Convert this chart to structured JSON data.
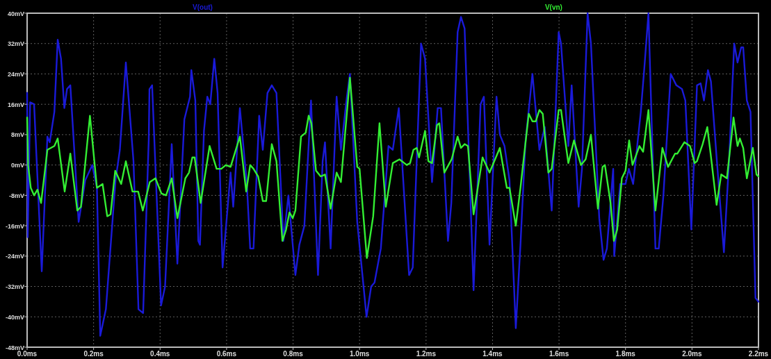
{
  "chart_data": {
    "type": "line",
    "legend": "top",
    "grid": true,
    "line_style": "solid",
    "marker": "none",
    "xlim": [
      0,
      2.2
    ],
    "ylim": [
      -48,
      40
    ],
    "xticks": [
      {
        "value": 0,
        "label": "0.0ms"
      },
      {
        "value": 0.2,
        "label": "0.2ms"
      },
      {
        "value": 0.4,
        "label": "0.4ms"
      },
      {
        "value": 0.6,
        "label": "0.6ms"
      },
      {
        "value": 0.8,
        "label": "0.8ms"
      },
      {
        "value": 1.0,
        "label": "1.0ms"
      },
      {
        "value": 1.2,
        "label": "1.2ms"
      },
      {
        "value": 1.4,
        "label": "1.4ms"
      },
      {
        "value": 1.6,
        "label": "1.6ms"
      },
      {
        "value": 1.8,
        "label": "1.8ms"
      },
      {
        "value": 2.0,
        "label": "2.0ms"
      },
      {
        "value": 2.2,
        "label": "2.2ms"
      }
    ],
    "yticks": [
      {
        "value": -48,
        "label": "-48mV"
      },
      {
        "value": -40,
        "label": "-40mV"
      },
      {
        "value": -32,
        "label": "-32mV"
      },
      {
        "value": -24,
        "label": "-24mV"
      },
      {
        "value": -16,
        "label": "-16mV"
      },
      {
        "value": -8,
        "label": "-8mV"
      },
      {
        "value": 0,
        "label": "0mV"
      },
      {
        "value": 8,
        "label": "8mV"
      },
      {
        "value": 16,
        "label": "16mV"
      },
      {
        "value": 24,
        "label": "24mV"
      },
      {
        "value": 32,
        "label": "32mV"
      },
      {
        "value": 40,
        "label": "40mV"
      }
    ],
    "series": [
      {
        "name": "V(out)",
        "color": "#1a1ad8",
        "x": [
          0,
          0.002,
          0.009,
          0.021,
          0.044,
          0.061,
          0.068,
          0.082,
          0.092,
          0.102,
          0.112,
          0.12,
          0.13,
          0.155,
          0.175,
          0.196,
          0.21,
          0.22,
          0.237,
          0.266,
          0.279,
          0.297,
          0.32,
          0.335,
          0.349,
          0.366,
          0.368,
          0.376,
          0.403,
          0.415,
          0.435,
          0.452,
          0.473,
          0.49,
          0.494,
          0.506,
          0.515,
          0.52,
          0.532,
          0.542,
          0.551,
          0.563,
          0.573,
          0.588,
          0.612,
          0.62,
          0.64,
          0.661,
          0.671,
          0.681,
          0.698,
          0.709,
          0.723,
          0.736,
          0.75,
          0.771,
          0.786,
          0.807,
          0.819,
          0.834,
          0.854,
          0.875,
          0.889,
          0.896,
          0.913,
          0.931,
          0.944,
          0.962,
          0.971,
          0.993,
          1.021,
          1.035,
          1.045,
          1.064,
          1.087,
          1.1,
          1.118,
          1.149,
          1.16,
          1.185,
          1.197,
          1.218,
          1.235,
          1.245,
          1.266,
          1.276,
          1.295,
          1.305,
          1.316,
          1.343,
          1.364,
          1.374,
          1.391,
          1.412,
          1.422,
          1.436,
          1.451,
          1.47,
          1.484,
          1.499,
          1.52,
          1.541,
          1.557,
          1.578,
          1.599,
          1.606,
          1.628,
          1.638,
          1.659,
          1.669,
          1.686,
          1.696,
          1.721,
          1.734,
          1.744,
          1.763,
          1.766,
          1.784,
          1.8,
          1.81,
          1.823,
          1.846,
          1.857,
          1.869,
          1.89,
          1.9,
          1.914,
          1.936,
          1.953,
          1.97,
          1.98,
          1.998,
          2.015,
          2.026,
          2.036,
          2.048,
          2.057,
          2.074,
          2.096,
          2.112,
          2.127,
          2.137,
          2.148,
          2.154,
          2.165,
          2.176,
          2.191,
          2.2
        ],
        "values": [
          19,
          -19,
          16.5,
          16,
          -28,
          7.5,
          6,
          14,
          33,
          28,
          15,
          20,
          21,
          -15,
          -4,
          0,
          -6,
          -45,
          -38,
          -4,
          4,
          27,
          1,
          -38,
          -39,
          7,
          20,
          21,
          -37,
          -32,
          5.5,
          -26,
          12,
          18,
          25,
          17,
          -20,
          -21,
          9,
          18,
          16,
          28,
          19,
          -27,
          -2,
          -11,
          15,
          -5,
          -22,
          -22,
          13,
          4,
          19,
          21,
          19,
          -20,
          -8,
          -29,
          -21,
          -16,
          17,
          -29,
          1,
          6,
          -22,
          18,
          4,
          18,
          24,
          -15,
          -40,
          -32,
          -31,
          -22,
          5,
          4,
          15,
          -29,
          -27,
          32,
          28,
          -4.5,
          15,
          15,
          -20,
          -10,
          35,
          39,
          36,
          -33,
          16,
          18,
          -21,
          18,
          8,
          5,
          -4,
          -43,
          -21,
          6,
          24,
          4,
          10,
          -12,
          35,
          32,
          5,
          21,
          -11,
          -1,
          40,
          32,
          -14,
          -25,
          -22,
          -1,
          -24,
          -5,
          -5,
          -1,
          -5,
          14,
          26,
          40,
          -22,
          -22,
          -8,
          24,
          21,
          20,
          17,
          -17,
          21,
          21.5,
          17,
          25,
          22,
          2,
          -23,
          2,
          32,
          27,
          31,
          31,
          17,
          14,
          -35,
          -36
        ]
      },
      {
        "name": "V(vn)",
        "color": "#33ee33",
        "x": [
          0,
          0.003,
          0.011,
          0.021,
          0.031,
          0.042,
          0.061,
          0.082,
          0.092,
          0.113,
          0.13,
          0.151,
          0.162,
          0.189,
          0.21,
          0.227,
          0.241,
          0.251,
          0.265,
          0.283,
          0.297,
          0.317,
          0.334,
          0.348,
          0.369,
          0.386,
          0.404,
          0.418,
          0.435,
          0.452,
          0.476,
          0.487,
          0.497,
          0.504,
          0.522,
          0.549,
          0.57,
          0.584,
          0.598,
          0.612,
          0.64,
          0.659,
          0.671,
          0.681,
          0.695,
          0.709,
          0.719,
          0.736,
          0.75,
          0.768,
          0.779,
          0.789,
          0.799,
          0.807,
          0.824,
          0.838,
          0.847,
          0.855,
          0.869,
          0.883,
          0.896,
          0.913,
          0.931,
          0.944,
          0.971,
          0.993,
          1.0,
          1.022,
          1.041,
          1.06,
          1.079,
          1.1,
          1.12,
          1.142,
          1.152,
          1.162,
          1.172,
          1.179,
          1.197,
          1.207,
          1.218,
          1.233,
          1.24,
          1.255,
          1.277,
          1.295,
          1.305,
          1.316,
          1.326,
          1.343,
          1.37,
          1.391,
          1.422,
          1.443,
          1.451,
          1.47,
          1.484,
          1.509,
          1.52,
          1.53,
          1.541,
          1.551,
          1.568,
          1.578,
          1.599,
          1.606,
          1.628,
          1.645,
          1.666,
          1.68,
          1.696,
          1.717,
          1.731,
          1.738,
          1.755,
          1.765,
          1.775,
          1.789,
          1.8,
          1.811,
          1.821,
          1.842,
          1.853,
          1.869,
          1.89,
          1.911,
          1.928,
          1.949,
          1.956,
          1.977,
          1.994,
          2.008,
          2.015,
          2.032,
          2.046,
          2.056,
          2.074,
          2.088,
          2.105,
          2.125,
          2.137,
          2.144,
          2.154,
          2.165,
          2.183,
          2.194,
          2.2
        ],
        "values": [
          12.5,
          0,
          -6,
          -8,
          -6.5,
          -10,
          4,
          5,
          7,
          -7,
          3,
          -12,
          -11,
          13,
          -6,
          -5,
          -13.5,
          -13,
          -1.5,
          -5,
          1,
          -7,
          -7,
          -12,
          -4.5,
          -3.5,
          -7.5,
          -8,
          -3.5,
          -14,
          -3.5,
          -2,
          2,
          2,
          -10,
          5,
          -1,
          -1,
          0,
          -0.5,
          7.5,
          -7,
          0,
          -1,
          -3,
          -9.5,
          -9.5,
          5.5,
          1,
          -20,
          -17,
          -12.5,
          -14,
          -12,
          7.5,
          8.5,
          13,
          11,
          -1.5,
          -3,
          -2.5,
          -11.5,
          -2,
          -4.5,
          23,
          -0.5,
          -1,
          -24.5,
          -13.5,
          11,
          -11,
          0.5,
          1.5,
          0,
          0.5,
          4,
          4.5,
          2,
          9,
          1,
          0.5,
          10.5,
          11,
          -2,
          1.5,
          7.5,
          4.5,
          5.5,
          5,
          -13,
          2,
          -2,
          4.5,
          -6,
          -6,
          -16,
          -6,
          13.5,
          11.5,
          11.5,
          14.5,
          13.5,
          -2,
          -1,
          14.5,
          14.5,
          0.5,
          6.5,
          0,
          1.5,
          8,
          -11.5,
          -0.5,
          0,
          -10,
          -20,
          -17,
          -3.5,
          -1.5,
          6.5,
          0,
          5,
          3.5,
          14.5,
          -12,
          4.5,
          -0.5,
          3,
          3,
          6,
          5,
          0.5,
          1,
          5.5,
          10,
          3,
          -10.5,
          -2.5,
          -3.5,
          12.5,
          5,
          7,
          4.5,
          -3.5,
          4.5,
          -2.5,
          -3
        ]
      }
    ]
  }
}
